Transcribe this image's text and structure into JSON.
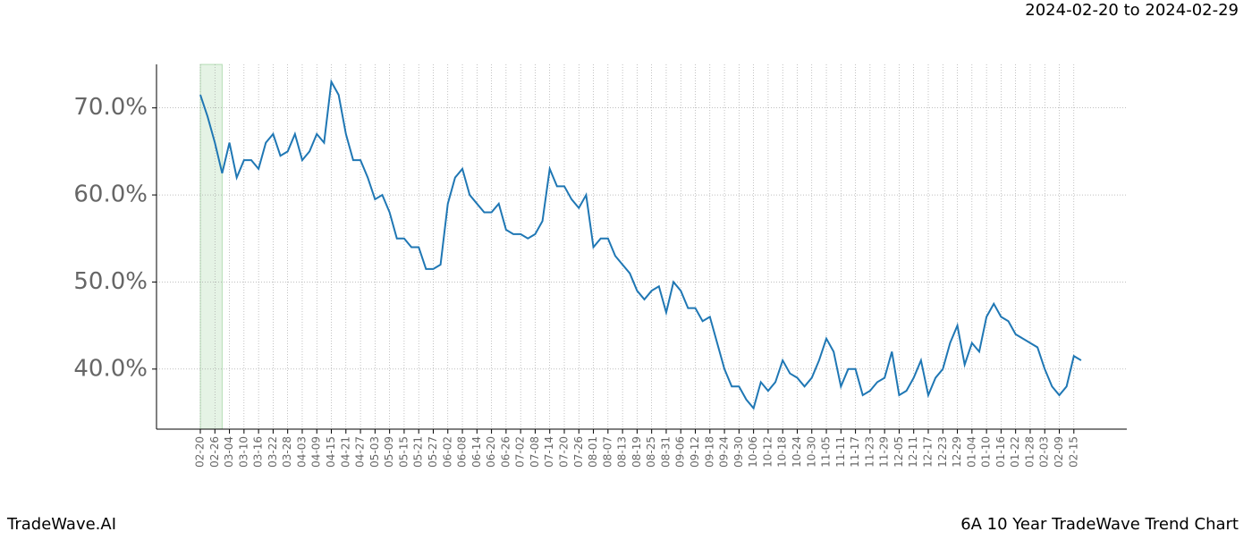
{
  "header": {
    "range": "2024-02-20 to 2024-02-29"
  },
  "footer": {
    "left": "TradeWave.AI",
    "right": "6A 10 Year TradeWave Trend Chart"
  },
  "chart_data": {
    "type": "line",
    "categories": [
      "02-20",
      null,
      "02-26",
      null,
      "03-04",
      null,
      "03-10",
      null,
      "03-16",
      null,
      "03-22",
      null,
      "03-28",
      null,
      "04-03",
      null,
      "04-09",
      null,
      "04-15",
      null,
      "04-21",
      null,
      "04-27",
      null,
      "05-03",
      null,
      "05-09",
      null,
      "05-15",
      null,
      "05-21",
      null,
      "05-27",
      null,
      "06-02",
      null,
      "06-08",
      null,
      "06-14",
      null,
      "06-20",
      null,
      "06-26",
      null,
      "07-02",
      null,
      "07-08",
      null,
      "07-14",
      null,
      "07-20",
      null,
      "07-26",
      null,
      "08-01",
      null,
      "08-07",
      null,
      "08-13",
      null,
      "08-19",
      null,
      "08-25",
      null,
      "08-31",
      null,
      "09-06",
      null,
      "09-12",
      null,
      "09-18",
      null,
      "09-24",
      null,
      "09-30",
      null,
      "10-06",
      null,
      "10-12",
      null,
      "10-18",
      null,
      "10-24",
      null,
      "10-30",
      null,
      "11-05",
      null,
      "11-11",
      null,
      "11-17",
      null,
      "11-23",
      null,
      "11-29",
      null,
      "12-05",
      null,
      "12-11",
      null,
      "12-17",
      null,
      "12-23",
      null,
      "12-29",
      null,
      "01-04",
      null,
      "01-10",
      null,
      "01-16",
      null,
      "01-22",
      null,
      "01-28",
      null,
      "02-03",
      null,
      "02-09",
      null,
      "02-15",
      null
    ],
    "series": [
      {
        "color": "#1f77b4",
        "values": [
          71.5,
          69,
          66,
          62.5,
          66,
          62,
          64,
          64,
          63,
          66,
          67,
          64.5,
          65,
          67,
          64,
          65,
          67,
          66,
          73,
          71.5,
          67,
          64,
          64,
          62,
          59.5,
          60,
          58,
          55,
          55,
          54,
          54,
          51.5,
          51.5,
          52,
          59,
          62,
          63,
          60,
          59,
          58,
          58,
          59,
          56,
          55.5,
          55.5,
          55,
          55.5,
          57,
          63,
          61,
          61,
          59.5,
          58.5,
          60,
          54,
          55,
          55,
          53,
          52,
          51,
          49,
          48,
          49,
          49.5,
          46.5,
          50,
          49,
          47,
          47,
          45.5,
          46,
          43,
          40,
          38,
          38,
          36.5,
          35.5,
          38.5,
          37.5,
          38.5,
          41,
          39.5,
          39,
          38,
          39,
          41,
          43.5,
          42,
          38,
          40,
          40,
          37,
          37.5,
          38.5,
          39,
          42,
          37,
          37.5,
          39,
          41,
          37,
          39,
          40,
          43,
          45,
          40.5,
          43,
          42,
          46,
          47.5,
          46,
          45.5,
          44,
          43.5,
          43,
          42.5,
          40,
          38,
          37,
          38,
          41.5,
          41
        ]
      }
    ],
    "ylim": [
      33.1,
      75.0
    ],
    "yticks": [
      {
        "value": 40,
        "label": "40.0%"
      },
      {
        "value": 50,
        "label": "50.0%"
      },
      {
        "value": 60,
        "label": "60.0%"
      },
      {
        "value": 70,
        "label": "70.0%"
      }
    ],
    "grid": true
  }
}
